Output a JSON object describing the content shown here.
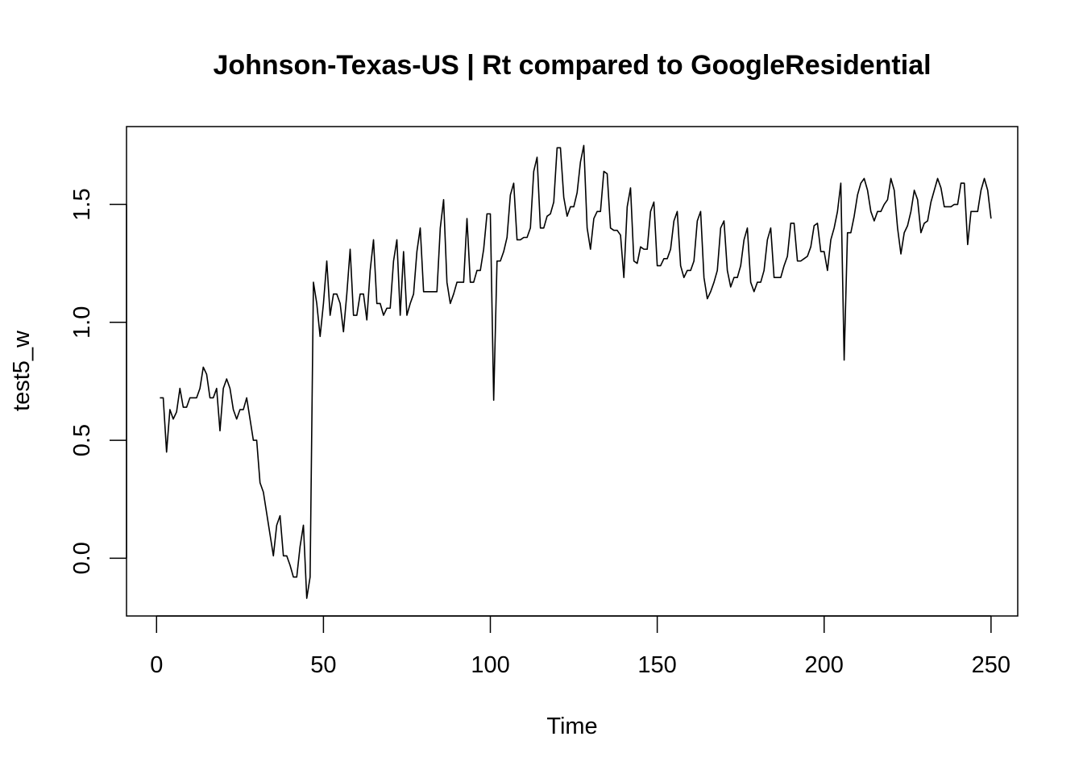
{
  "chart_data": {
    "type": "line",
    "title": "Johnson-Texas-US | Rt compared to GoogleResidential",
    "xlabel": "Time",
    "ylabel": "test5_w",
    "xlim": [
      -9,
      258
    ],
    "ylim": [
      -0.245,
      1.83
    ],
    "x_ticks": [
      0,
      50,
      100,
      150,
      200,
      250
    ],
    "y_ticks": [
      0.0,
      0.5,
      1.0,
      1.5
    ],
    "x_tick_labels": [
      "0",
      "50",
      "100",
      "150",
      "200",
      "250"
    ],
    "y_tick_labels": [
      "0.0",
      "0.5",
      "1.0",
      "1.5"
    ],
    "grid": false,
    "legend": "none",
    "line_color": "#000000",
    "series": [
      {
        "x_start": 1,
        "values": [
          0.68,
          0.68,
          0.45,
          0.63,
          0.59,
          0.62,
          0.72,
          0.64,
          0.64,
          0.68,
          0.68,
          0.68,
          0.72,
          0.81,
          0.78,
          0.68,
          0.68,
          0.72,
          0.54,
          0.72,
          0.76,
          0.72,
          0.63,
          0.59,
          0.63,
          0.63,
          0.68,
          0.59,
          0.5,
          0.5,
          0.32,
          0.28,
          0.19,
          0.1,
          0.01,
          0.14,
          0.18,
          0.01,
          0.01,
          -0.03,
          -0.08,
          -0.08,
          0.05,
          0.14,
          -0.17,
          -0.08,
          1.17,
          1.08,
          0.94,
          1.08,
          1.26,
          1.03,
          1.12,
          1.12,
          1.08,
          0.96,
          1.12,
          1.31,
          1.03,
          1.03,
          1.12,
          1.12,
          1.01,
          1.22,
          1.35,
          1.08,
          1.08,
          1.03,
          1.06,
          1.06,
          1.26,
          1.35,
          1.03,
          1.3,
          1.03,
          1.08,
          1.12,
          1.3,
          1.4,
          1.13,
          1.13,
          1.13,
          1.13,
          1.13,
          1.4,
          1.52,
          1.17,
          1.08,
          1.12,
          1.17,
          1.17,
          1.17,
          1.44,
          1.17,
          1.17,
          1.22,
          1.22,
          1.31,
          1.46,
          1.46,
          0.67,
          1.26,
          1.26,
          1.3,
          1.36,
          1.54,
          1.59,
          1.35,
          1.35,
          1.36,
          1.36,
          1.4,
          1.64,
          1.7,
          1.4,
          1.4,
          1.45,
          1.46,
          1.51,
          1.74,
          1.74,
          1.53,
          1.45,
          1.49,
          1.49,
          1.55,
          1.68,
          1.75,
          1.4,
          1.31,
          1.44,
          1.47,
          1.47,
          1.64,
          1.63,
          1.4,
          1.39,
          1.39,
          1.37,
          1.19,
          1.49,
          1.57,
          1.26,
          1.25,
          1.32,
          1.31,
          1.31,
          1.47,
          1.51,
          1.24,
          1.24,
          1.27,
          1.27,
          1.31,
          1.43,
          1.47,
          1.24,
          1.19,
          1.22,
          1.22,
          1.26,
          1.43,
          1.47,
          1.19,
          1.1,
          1.13,
          1.17,
          1.22,
          1.4,
          1.43,
          1.22,
          1.15,
          1.19,
          1.19,
          1.24,
          1.35,
          1.4,
          1.17,
          1.13,
          1.17,
          1.17,
          1.22,
          1.35,
          1.4,
          1.19,
          1.19,
          1.19,
          1.24,
          1.28,
          1.42,
          1.42,
          1.26,
          1.26,
          1.27,
          1.28,
          1.32,
          1.41,
          1.42,
          1.3,
          1.3,
          1.22,
          1.35,
          1.4,
          1.47,
          1.59,
          0.84,
          1.38,
          1.38,
          1.45,
          1.54,
          1.59,
          1.61,
          1.56,
          1.47,
          1.43,
          1.47,
          1.47,
          1.5,
          1.52,
          1.61,
          1.56,
          1.4,
          1.29,
          1.38,
          1.41,
          1.47,
          1.56,
          1.52,
          1.38,
          1.42,
          1.43,
          1.51,
          1.56,
          1.61,
          1.57,
          1.49,
          1.49,
          1.49,
          1.5,
          1.5,
          1.59,
          1.59,
          1.33,
          1.47,
          1.47,
          1.47,
          1.56,
          1.61,
          1.56,
          1.44
        ]
      }
    ]
  }
}
